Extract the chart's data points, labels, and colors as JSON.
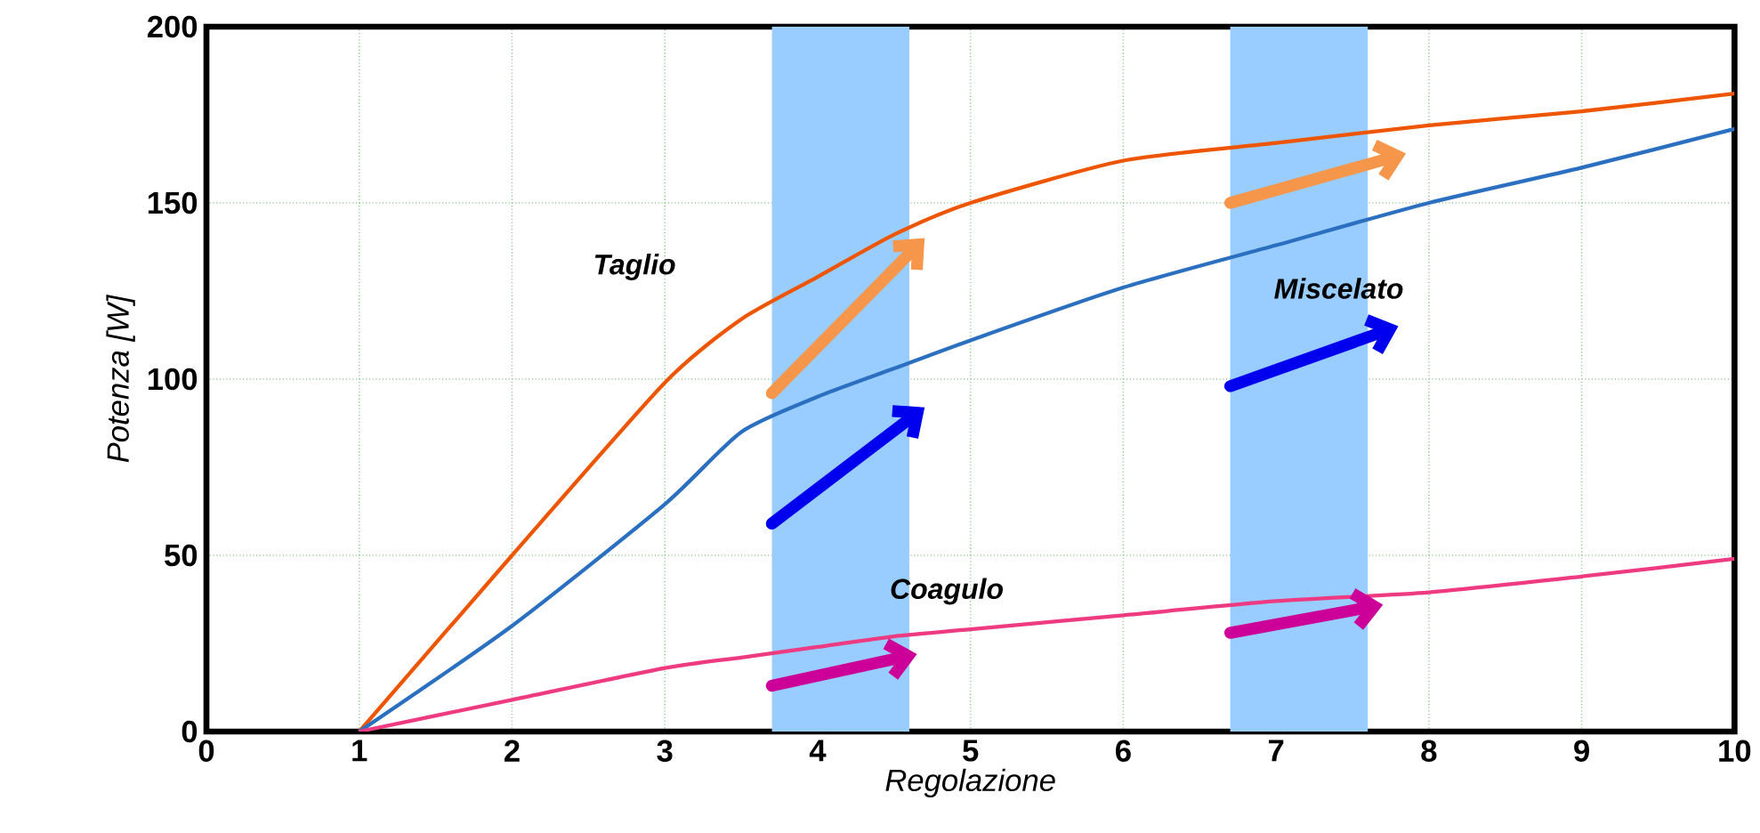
{
  "chart_data": {
    "type": "line",
    "xlabel": "Regolazione",
    "ylabel": "Potenza   [W]",
    "xlim": [
      0,
      10
    ],
    "ylim": [
      0,
      200
    ],
    "xticks": [
      0,
      1,
      2,
      3,
      4,
      5,
      6,
      7,
      8,
      9,
      10
    ],
    "yticks": [
      0,
      50,
      100,
      150,
      200
    ],
    "grid": true,
    "marker": "none",
    "line_style": "solid",
    "x": [
      1,
      2,
      3,
      3.5,
      4,
      4.5,
      5,
      6,
      7,
      8,
      9,
      10
    ],
    "series": [
      {
        "name": "Taglio",
        "color": "#ee5500",
        "values": [
          0,
          50,
          99,
          117,
          129,
          141,
          150,
          162,
          167,
          172,
          176,
          181
        ]
      },
      {
        "name": "Miscelato",
        "color": "#2a6fc0",
        "values": [
          0,
          30,
          64.5,
          85,
          95,
          103,
          111,
          126,
          138,
          150,
          160,
          171
        ]
      },
      {
        "name": "Coagulo",
        "color": "#ee3a80",
        "values": [
          0,
          9,
          18,
          21,
          24,
          27,
          29,
          33,
          37,
          39.5,
          44,
          49
        ]
      }
    ],
    "bands": [
      {
        "axis": "x",
        "from": 3.7,
        "to": 4.6,
        "color": "#99ccff"
      },
      {
        "axis": "x",
        "from": 6.7,
        "to": 7.6,
        "color": "#99ccff"
      }
    ]
  }
}
